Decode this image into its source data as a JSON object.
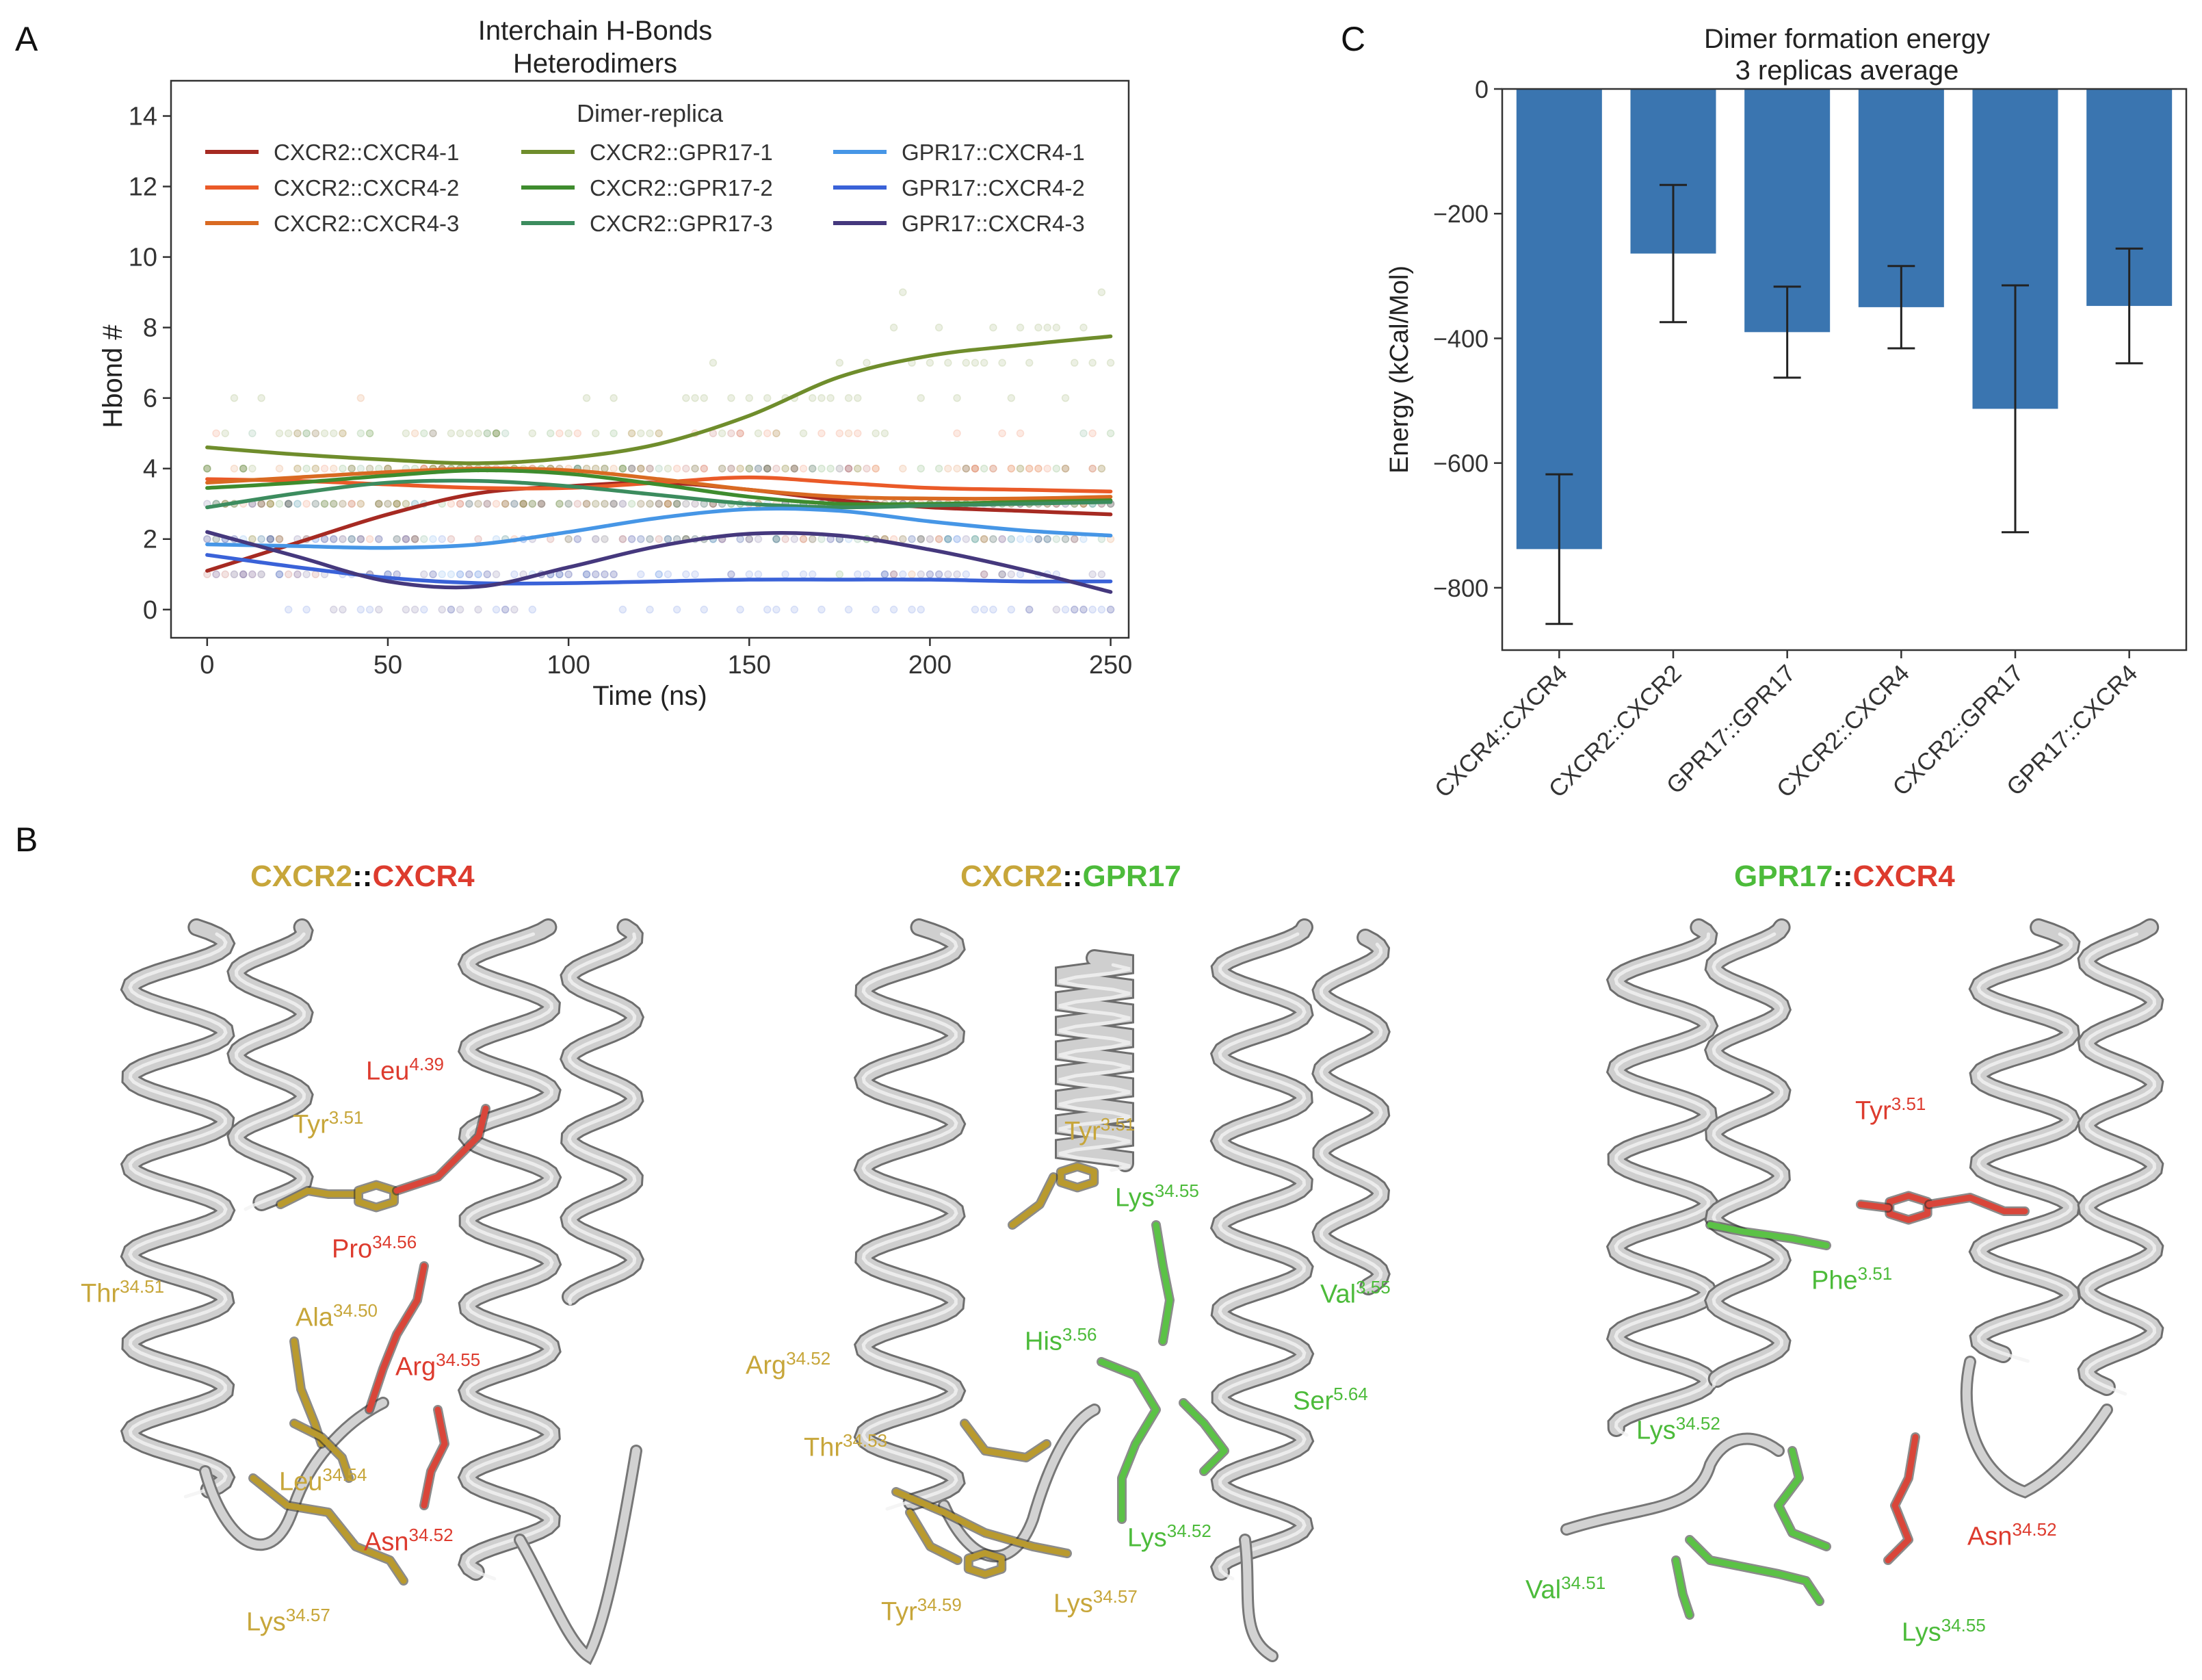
{
  "panel_labels": {
    "a": "A",
    "b": "B",
    "c": "C"
  },
  "chart_data": [
    {
      "type": "line",
      "title": "Interchain H-Bonds",
      "subtitle": "Heterodimers",
      "xlabel": "Time (ns)",
      "ylabel": "Hbond #",
      "xlim": [
        -10,
        255
      ],
      "ylim": [
        -0.8,
        15
      ],
      "xticks": [
        0,
        50,
        100,
        150,
        200,
        250
      ],
      "yticks": [
        0,
        2,
        4,
        6,
        8,
        10,
        12,
        14
      ],
      "legend_title": "Dimer-replica",
      "legend_position": "top",
      "x": [
        0,
        25,
        50,
        75,
        100,
        125,
        150,
        175,
        200,
        225,
        250
      ],
      "series": [
        {
          "name": "CXCR2::CXCR4-1",
          "color": "#a62a22",
          "values": [
            1.1,
            1.9,
            2.7,
            3.3,
            3.5,
            3.6,
            3.4,
            3.1,
            2.9,
            2.8,
            2.7
          ]
        },
        {
          "name": "CXCR2::CXCR4-2",
          "color": "#ea5a28",
          "values": [
            3.7,
            3.65,
            3.55,
            3.45,
            3.45,
            3.6,
            3.75,
            3.6,
            3.45,
            3.4,
            3.35
          ]
        },
        {
          "name": "CXCR2::CXCR4-3",
          "color": "#d96a22",
          "values": [
            3.6,
            3.75,
            3.9,
            4.0,
            3.95,
            3.7,
            3.4,
            3.2,
            3.15,
            3.15,
            3.2
          ]
        },
        {
          "name": "CXCR2::GPR17-1",
          "color": "#6f8d2c",
          "values": [
            4.6,
            4.4,
            4.25,
            4.15,
            4.3,
            4.7,
            5.5,
            6.6,
            7.2,
            7.5,
            7.75
          ]
        },
        {
          "name": "CXCR2::GPR17-2",
          "color": "#3e8c2e",
          "values": [
            3.45,
            3.6,
            3.8,
            3.95,
            3.85,
            3.55,
            3.2,
            3.0,
            3.0,
            3.05,
            3.1
          ]
        },
        {
          "name": "CXCR2::GPR17-3",
          "color": "#3c8c5e",
          "values": [
            2.9,
            3.3,
            3.6,
            3.65,
            3.5,
            3.25,
            3.0,
            2.9,
            2.95,
            3.0,
            3.05
          ]
        },
        {
          "name": "GPR17::CXCR4-1",
          "color": "#4696e6",
          "values": [
            1.85,
            1.8,
            1.75,
            1.85,
            2.2,
            2.6,
            2.85,
            2.8,
            2.5,
            2.25,
            2.1
          ]
        },
        {
          "name": "GPR17::CXCR4-2",
          "color": "#3a62d8",
          "values": [
            1.55,
            1.2,
            0.9,
            0.75,
            0.75,
            0.8,
            0.85,
            0.85,
            0.85,
            0.8,
            0.8
          ]
        },
        {
          "name": "GPR17::CXCR4-3",
          "color": "#45387d",
          "values": [
            2.2,
            1.5,
            0.8,
            0.65,
            1.2,
            1.8,
            2.15,
            2.1,
            1.7,
            1.15,
            0.5
          ]
        }
      ]
    },
    {
      "type": "bar",
      "title": "Dimer formation energy",
      "subtitle": "3 replicas average",
      "xlabel": "",
      "ylabel": "Energy (kCal/Mol)",
      "ylim": [
        -900,
        0
      ],
      "yticks": [
        0,
        -200,
        -400,
        -600,
        -800
      ],
      "categories": [
        "CXCR4::CXCR4",
        "CXCR2::CXCR2",
        "GPR17::GPR17",
        "CXCR2::CXCR4",
        "CXCR2::GPR17",
        "GPR17::CXCR4"
      ],
      "values": [
        -738,
        -264,
        -390,
        -350,
        -513,
        -348
      ],
      "error": [
        120,
        110,
        73,
        66,
        198,
        92
      ],
      "bar_color": "#3a75b0"
    }
  ],
  "panel_b": {
    "structures": [
      {
        "title_parts": [
          {
            "text": "CXCR2",
            "color": "gold"
          },
          {
            "text": "::",
            "color": "black"
          },
          {
            "text": "CXCR4",
            "color": "red"
          }
        ],
        "residues": [
          {
            "name": "Leu",
            "sup": "4.39",
            "color": "red"
          },
          {
            "name": "Tyr",
            "sup": "3.51",
            "color": "gold"
          },
          {
            "name": "Pro",
            "sup": "34.56",
            "color": "red"
          },
          {
            "name": "Thr",
            "sup": "34.51",
            "color": "gold"
          },
          {
            "name": "Ala",
            "sup": "34.50",
            "color": "gold"
          },
          {
            "name": "Arg",
            "sup": "34.55",
            "color": "red"
          },
          {
            "name": "Leu",
            "sup": "34.54",
            "color": "gold"
          },
          {
            "name": "Asn",
            "sup": "34.52",
            "color": "red"
          },
          {
            "name": "Lys",
            "sup": "34.57",
            "color": "gold"
          }
        ]
      },
      {
        "title_parts": [
          {
            "text": "CXCR2",
            "color": "gold"
          },
          {
            "text": "::",
            "color": "black"
          },
          {
            "text": "GPR17",
            "color": "green"
          }
        ],
        "residues": [
          {
            "name": "Tyr",
            "sup": "3.51",
            "color": "gold"
          },
          {
            "name": "Lys",
            "sup": "34.55",
            "color": "green"
          },
          {
            "name": "Val",
            "sup": "3.55",
            "color": "green"
          },
          {
            "name": "His",
            "sup": "3.56",
            "color": "green"
          },
          {
            "name": "Arg",
            "sup": "34.52",
            "color": "gold"
          },
          {
            "name": "Ser",
            "sup": "5.64",
            "color": "green"
          },
          {
            "name": "Thr",
            "sup": "34.53",
            "color": "gold"
          },
          {
            "name": "Lys",
            "sup": "34.52",
            "color": "green"
          },
          {
            "name": "Tyr",
            "sup": "34.59",
            "color": "gold"
          },
          {
            "name": "Lys",
            "sup": "34.57",
            "color": "gold"
          }
        ]
      },
      {
        "title_parts": [
          {
            "text": "GPR17",
            "color": "green"
          },
          {
            "text": "::",
            "color": "black"
          },
          {
            "text": "CXCR4",
            "color": "red"
          }
        ],
        "residues": [
          {
            "name": "Tyr",
            "sup": "3.51",
            "color": "red"
          },
          {
            "name": "Phe",
            "sup": "3.51",
            "color": "green"
          },
          {
            "name": "Lys",
            "sup": "34.52",
            "color": "green"
          },
          {
            "name": "Asn",
            "sup": "34.52",
            "color": "red"
          },
          {
            "name": "Val",
            "sup": "34.51",
            "color": "green"
          },
          {
            "name": "Lys",
            "sup": "34.55",
            "color": "green"
          }
        ]
      }
    ]
  }
}
